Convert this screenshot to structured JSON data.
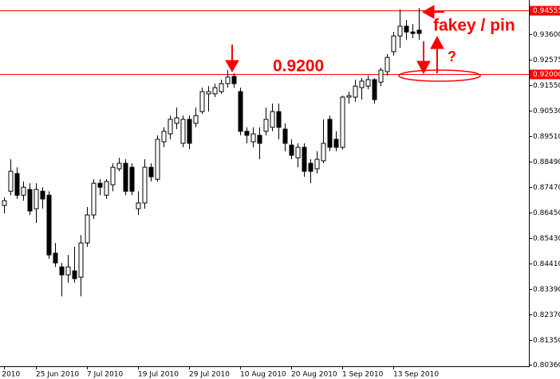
{
  "chart_data": {
    "type": "candlestick",
    "categories": [
      "un 2010",
      null,
      null,
      null,
      null,
      "25 Jun 2010",
      null,
      null,
      null,
      null,
      null,
      null,
      null,
      "7 Jul 2010",
      null,
      null,
      null,
      null,
      null,
      null,
      null,
      "19 Jul 2010",
      null,
      null,
      null,
      null,
      null,
      null,
      null,
      "29 Jul 2010",
      null,
      null,
      null,
      null,
      null,
      null,
      null,
      "10 Aug 2010",
      null,
      null,
      null,
      null,
      null,
      null,
      null,
      "20 Aug 2010",
      null,
      null,
      null,
      null,
      null,
      null,
      null,
      "1 Sep 2010",
      null,
      null,
      null,
      null,
      null,
      null,
      null,
      "13 Sep 2010",
      null,
      null,
      null,
      null
    ],
    "open": [
      0.8674,
      0.8731,
      0.8802,
      0.8715,
      0.8738,
      0.8661,
      0.8731,
      0.8715,
      0.8483,
      0.8428,
      0.8396,
      0.8412,
      0.8387,
      0.8524,
      0.8636,
      0.8763,
      0.8715,
      0.8757,
      0.8821,
      0.8843,
      0.8827,
      0.8661,
      0.8684,
      0.8827,
      0.8779,
      0.8929,
      0.8961,
      0.9003,
      0.8923,
      0.9019,
      0.9003,
      0.905,
      0.9121,
      0.9121,
      0.913,
      0.9162,
      0.9191,
      0.913,
      0.8971,
      0.8929,
      0.8955,
      0.8971,
      0.8987,
      0.905,
      0.898,
      0.8916,
      0.8865,
      0.8907,
      0.8843,
      0.8821,
      0.8853,
      0.9019,
      0.8939,
      0.8907,
      0.9108,
      0.9108,
      0.9146,
      0.9152,
      0.9178,
      0.9168,
      0.921,
      0.929,
      0.9353,
      0.9392,
      0.9369,
      0.9376
    ],
    "high": [
      0.8706,
      0.8859,
      0.8827,
      0.877,
      0.8763,
      0.8763,
      0.8747,
      0.8731,
      0.8524,
      0.8444,
      0.8476,
      0.8508,
      0.8556,
      0.8668,
      0.8779,
      0.8779,
      0.8779,
      0.8843,
      0.8865,
      0.8859,
      0.8843,
      0.8731,
      0.8859,
      0.8843,
      0.8955,
      0.8987,
      0.9034,
      0.9066,
      0.9034,
      0.9034,
      0.9066,
      0.9146,
      0.9152,
      0.9162,
      0.9178,
      0.9216,
      0.9204,
      0.9146,
      0.8987,
      0.8987,
      0.8987,
      0.9066,
      0.9082,
      0.9082,
      0.9003,
      0.8939,
      0.8923,
      0.8923,
      0.8859,
      0.8891,
      0.9019,
      0.9034,
      0.8971,
      0.9114,
      0.913,
      0.9178,
      0.9184,
      0.9194,
      0.9184,
      0.9226,
      0.928,
      0.9369,
      0.9459,
      0.9417,
      0.9401,
      0.9465
    ],
    "low": [
      0.8642,
      0.8715,
      0.87,
      0.8693,
      0.8636,
      0.8604,
      0.8661,
      0.846,
      0.8428,
      0.831,
      0.8365,
      0.8365,
      0.831,
      0.8508,
      0.862,
      0.8715,
      0.87,
      0.8731,
      0.8811,
      0.8715,
      0.8715,
      0.8636,
      0.8661,
      0.877,
      0.877,
      0.8907,
      0.8939,
      0.898,
      0.8907,
      0.89,
      0.8987,
      0.9041,
      0.905,
      0.9108,
      0.9121,
      0.9146,
      0.9146,
      0.8955,
      0.8923,
      0.8907,
      0.8859,
      0.8955,
      0.8971,
      0.8939,
      0.8891,
      0.8859,
      0.8827,
      0.8789,
      0.8763,
      0.8802,
      0.8843,
      0.8891,
      0.8891,
      0.8897,
      0.9082,
      0.9089,
      0.9098,
      0.914,
      0.9082,
      0.9152,
      0.9194,
      0.9274,
      0.9306,
      0.9338,
      0.9344,
      0.9338
    ],
    "close": [
      0.8693,
      0.8811,
      0.8715,
      0.8747,
      0.8652,
      0.8738,
      0.87,
      0.8476,
      0.8444,
      0.8396,
      0.8428,
      0.8381,
      0.8524,
      0.8636,
      0.8763,
      0.8747,
      0.877,
      0.8827,
      0.8843,
      0.8731,
      0.8731,
      0.8684,
      0.8827,
      0.8789,
      0.8939,
      0.8971,
      0.9019,
      0.9025,
      0.9019,
      0.8923,
      0.9034,
      0.913,
      0.913,
      0.9146,
      0.9162,
      0.9188,
      0.9162,
      0.8971,
      0.8955,
      0.8961,
      0.8923,
      0.9019,
      0.905,
      0.8987,
      0.8923,
      0.8875,
      0.8907,
      0.8811,
      0.8811,
      0.8859,
      0.8923,
      0.8907,
      0.8907,
      0.9108,
      0.9114,
      0.9152,
      0.9172,
      0.9178,
      0.9098,
      0.9216,
      0.9267,
      0.9353,
      0.9392,
      0.9369,
      0.9363,
      0.9363
    ],
    "up_color": "#ffffff",
    "down_color": "#000000",
    "ylim": [
      0.803,
      0.9497
    ],
    "yticks": [
      {
        "value": 0.936,
        "label": "0.93600"
      },
      {
        "value": 0.92575,
        "label": "0.92575"
      },
      {
        "value": 0.9155,
        "label": "0.91550"
      },
      {
        "value": 0.9053,
        "label": "0.90530"
      },
      {
        "value": 0.8951,
        "label": "0.89510"
      },
      {
        "value": 0.8849,
        "label": "0.88490"
      },
      {
        "value": 0.8747,
        "label": "0.87470"
      },
      {
        "value": 0.8645,
        "label": "0.86450"
      },
      {
        "value": 0.8543,
        "label": "0.85430"
      },
      {
        "value": 0.8441,
        "label": "0.84410"
      },
      {
        "value": 0.8339,
        "label": "0.83390"
      },
      {
        "value": 0.8237,
        "label": "0.82370"
      },
      {
        "value": 0.8135,
        "label": "0.81350"
      },
      {
        "value": 0.8036,
        "label": "0.80360"
      }
    ],
    "levels": [
      {
        "value": 0.94555,
        "label": "0.94555"
      },
      {
        "value": 0.92,
        "label": "0.92000"
      }
    ],
    "level_color": "#ff0000",
    "annotations": [
      "0.9200",
      "fakey / pin",
      "?"
    ]
  }
}
